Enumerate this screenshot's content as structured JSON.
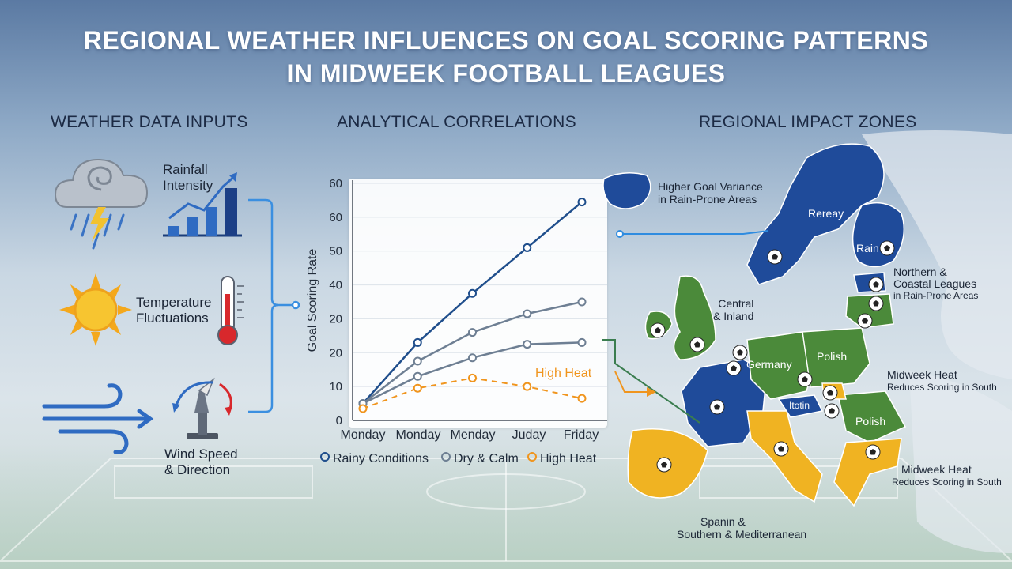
{
  "title_line1": "REGIONAL WEATHER INFLUENCES ON GOAL SCORING PATTERNS",
  "title_line2": "IN MIDWEEK FOOTBALL LEAGUES",
  "sections": {
    "inputs": "WEATHER DATA INPUTS",
    "correlations": "ANALYTICAL CORRELATIONS",
    "zones": "REGIONAL IMPACT ZONES"
  },
  "inputs": {
    "rainfall": [
      "Rainfall",
      "Intensity"
    ],
    "temperature": [
      "Temperature",
      "Fluctuations"
    ],
    "wind": [
      "Wind Speed",
      "& Direction"
    ]
  },
  "colors": {
    "rainy": "#1f4e8c",
    "dry": "#6e7f93",
    "heat": "#f0951e",
    "zone_north": "#1f4b9a",
    "zone_central": "#4b8a3a",
    "zone_south": "#f0b322"
  },
  "icons": [
    "storm-cloud-icon",
    "rainfall-bar-chart-icon",
    "sun-icon",
    "thermometer-icon",
    "wind-gust-icon",
    "anemometer-icon",
    "soccer-ball-icon"
  ],
  "chart_data": {
    "type": "line",
    "categories": [
      "Monday",
      "Monday",
      "Menday",
      "Juday",
      "Friday"
    ],
    "ylabel": "Goal Scoring Rate",
    "xlabel": "",
    "y_ticks": [
      "0",
      "10",
      "20",
      "20",
      "40",
      "50",
      "60",
      "60"
    ],
    "ylim": [
      0,
      70
    ],
    "grid": true,
    "legend_position": "bottom",
    "series": [
      {
        "name": "Rainy Conditions",
        "values": [
          5,
          23,
          37.5,
          51,
          64.5
        ],
        "style": "solid"
      },
      {
        "name": "Dry & Calm",
        "values": [
          5,
          17.5,
          26,
          31.5,
          35
        ],
        "style": "solid"
      },
      {
        "name": "Dry & Calm",
        "values": [
          5,
          13,
          18.5,
          22.5,
          23
        ],
        "style": "solid"
      },
      {
        "name": "High Heat",
        "values": [
          3.5,
          9.5,
          12.5,
          10,
          6.5
        ],
        "style": "dashed"
      }
    ],
    "annotations": [
      "High Heat"
    ]
  },
  "legend": [
    "Rainy Conditions",
    "Dry & Calm",
    "High Heat"
  ],
  "map_labels": {
    "higher_variance": [
      "Higher Goal Variance",
      "in Rain-Prone Areas"
    ],
    "rereay": "Rereay",
    "rain": "Rain",
    "northern": [
      "Northern &",
      "Coastal Leagues",
      "in Rain-Prone Areas"
    ],
    "central": [
      "Central",
      "& Inland"
    ],
    "germany": "Germany",
    "polish1": "Polish",
    "polish2": "Polish",
    "itotin": "Itotin",
    "heat1": [
      "Midweek Heat",
      "Reduces Scoring in South"
    ],
    "heat2": [
      "Midweek Heat",
      "Reduces Scoring in South"
    ],
    "spain": [
      "Spanin &",
      "Southern & Mediterranean"
    ]
  }
}
